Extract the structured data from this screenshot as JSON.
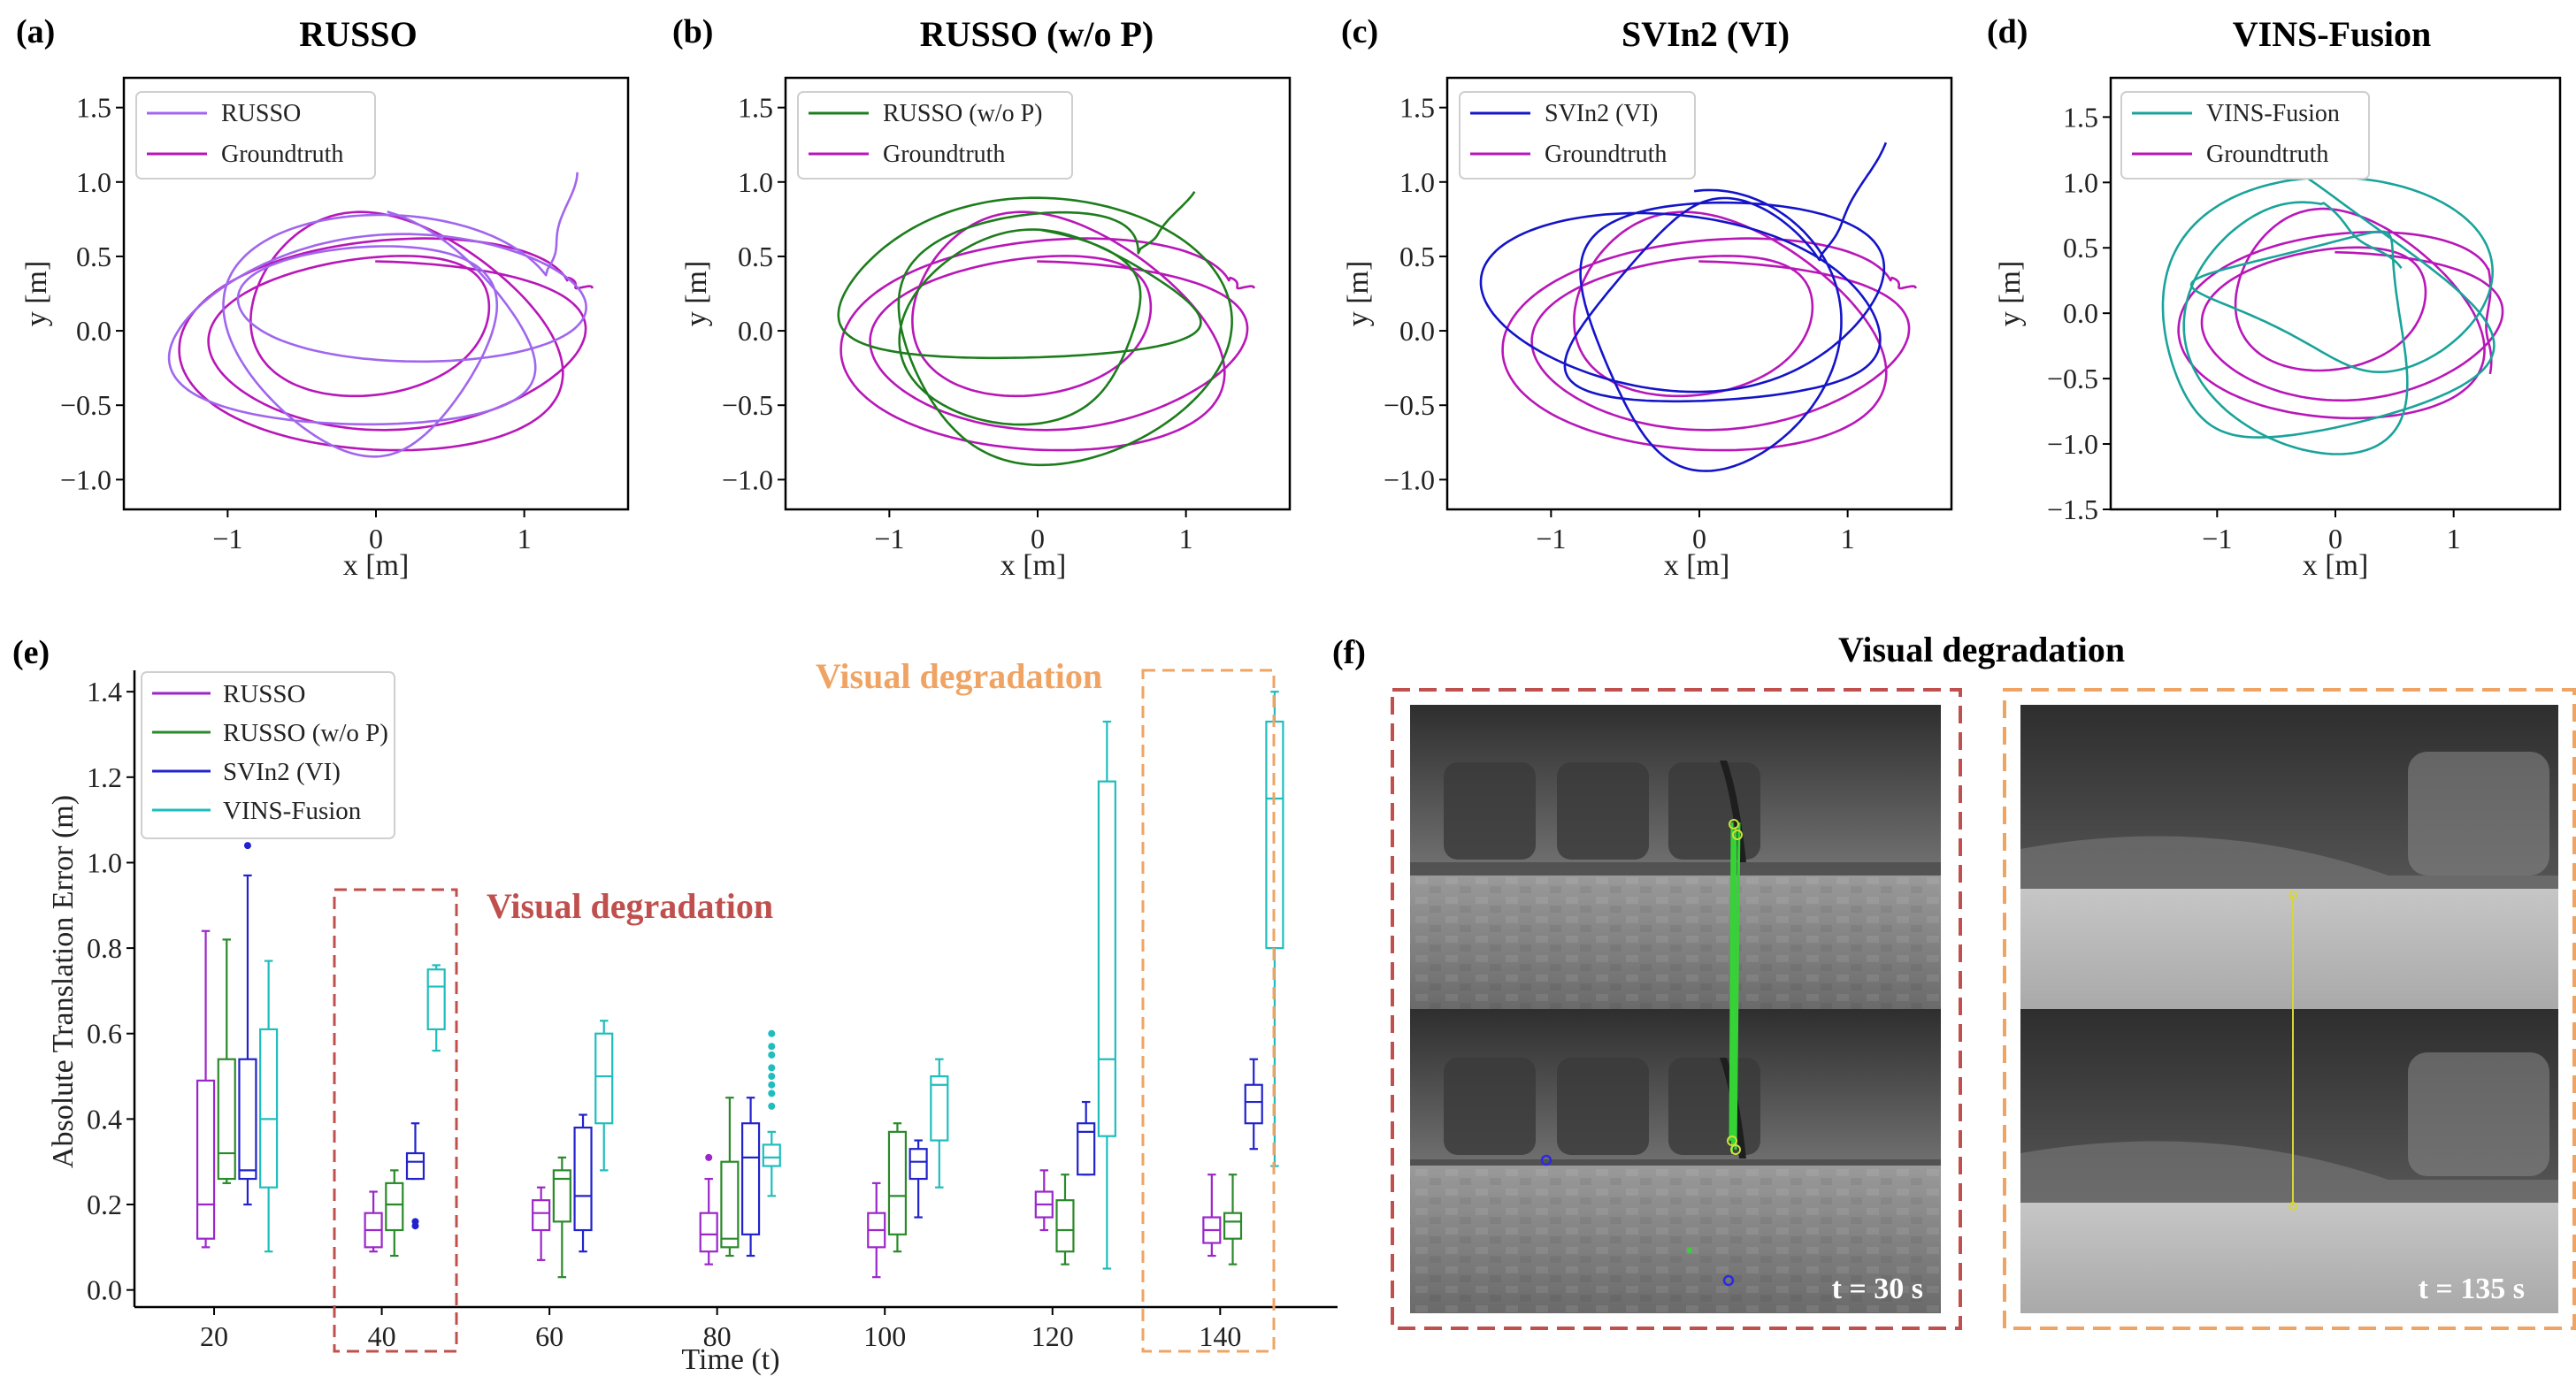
{
  "colors": {
    "russo": "#a066ee",
    "groundtruth": "#b817b8",
    "russo_wop": "#1d7d1d",
    "svin2": "#1414c8",
    "vins": "#1aa39a",
    "box_russo": "#9b26c9",
    "box_wop": "#2a8a2a",
    "box_svin2": "#2222cc",
    "box_vins": "#1fbdbd",
    "vd_red": "#c0504d",
    "vd_orange": "#f0a464"
  },
  "chart_data": [
    {
      "panel": "(a)",
      "type": "line",
      "title": "RUSSO",
      "xlabel": "x [m]",
      "ylabel": "y [m]",
      "xlim": [
        -1.7,
        1.7
      ],
      "ylim": [
        -1.2,
        1.7
      ],
      "xticks": [
        -1,
        0,
        1
      ],
      "xtick_labels": [
        "−1",
        "0",
        "1"
      ],
      "yticks": [
        -1.0,
        -0.5,
        0.0,
        0.5,
        1.0,
        1.5
      ],
      "ytick_labels": [
        "−1.0",
        "−0.5",
        "0.0",
        "0.5",
        "1.0",
        "1.5"
      ],
      "legend": "top-left",
      "series": [
        {
          "name": "RUSSO",
          "color_key": "russo",
          "seed": 11,
          "est": true,
          "params": {
            "a": 1.3,
            "b": 0.74,
            "cx": 0.0,
            "cy": 0.08,
            "loops": 3.2,
            "amp": 0.08,
            "exitx": 1.35,
            "exity": 1.05
          }
        },
        {
          "name": "Groundtruth",
          "color_key": "groundtruth",
          "seed": 3,
          "est": false,
          "params": {
            "a": 1.28,
            "b": 0.72,
            "cx": 0.02,
            "cy": 0.02,
            "loops": 3.2,
            "amp": 0.06,
            "exitx": 1.45,
            "exity": 0.27
          }
        }
      ]
    },
    {
      "panel": "(b)",
      "type": "line",
      "title": "RUSSO (w/o P)",
      "xlabel": "x [m]",
      "ylabel": "y [m]",
      "xlim": [
        -1.7,
        1.7
      ],
      "ylim": [
        -1.2,
        1.7
      ],
      "xticks": [
        -1,
        0,
        1
      ],
      "xtick_labels": [
        "−1",
        "0",
        "1"
      ],
      "yticks": [
        -1.0,
        -0.5,
        0.0,
        0.5,
        1.0,
        1.5
      ],
      "ytick_labels": [
        "−1.0",
        "−0.5",
        "0.0",
        "0.5",
        "1.0",
        "1.5"
      ],
      "legend": "top-left",
      "series": [
        {
          "name": "RUSSO (w/o P)",
          "color_key": "russo_wop",
          "seed": 7,
          "est": true,
          "params": {
            "a": 1.25,
            "b": 0.8,
            "cx": -0.05,
            "cy": 0.12,
            "loops": 3.2,
            "amp": 0.1,
            "exitx": 1.05,
            "exity": 0.92
          }
        },
        {
          "name": "Groundtruth",
          "color_key": "groundtruth",
          "seed": 3,
          "est": false,
          "params": {
            "a": 1.28,
            "b": 0.72,
            "cx": 0.02,
            "cy": 0.02,
            "loops": 3.2,
            "amp": 0.06,
            "exitx": 1.45,
            "exity": 0.27
          }
        }
      ]
    },
    {
      "panel": "(c)",
      "type": "line",
      "title": "SVIn2 (VI)",
      "xlabel": "x [m]",
      "ylabel": "y [m]",
      "xlim": [
        -1.7,
        1.7
      ],
      "ylim": [
        -1.2,
        1.7
      ],
      "xticks": [
        -1,
        0,
        1
      ],
      "xtick_labels": [
        "−1",
        "0",
        "1"
      ],
      "yticks": [
        -1.0,
        -0.5,
        0.0,
        0.5,
        1.0,
        1.5
      ],
      "ytick_labels": [
        "−1.0",
        "−0.5",
        "0.0",
        "0.5",
        "1.0",
        "1.5"
      ],
      "legend": "top-left",
      "series": [
        {
          "name": "SVIn2 (VI)",
          "color_key": "svin2",
          "seed": 19,
          "est": true,
          "params": {
            "a": 1.3,
            "b": 0.85,
            "cx": 0.05,
            "cy": 0.15,
            "loops": 3.2,
            "amp": 0.1,
            "exitx": 1.25,
            "exity": 1.25
          }
        },
        {
          "name": "Groundtruth",
          "color_key": "groundtruth",
          "seed": 3,
          "est": false,
          "params": {
            "a": 1.28,
            "b": 0.72,
            "cx": 0.02,
            "cy": 0.02,
            "loops": 3.2,
            "amp": 0.06,
            "exitx": 1.45,
            "exity": 0.27
          }
        }
      ]
    },
    {
      "panel": "(d)",
      "type": "line",
      "title": "VINS-Fusion",
      "xlabel": "x [m]",
      "ylabel": "y [m]",
      "xlim": [
        -1.9,
        1.9
      ],
      "ylim": [
        -1.5,
        1.8
      ],
      "xticks": [
        -1,
        0,
        1
      ],
      "xtick_labels": [
        "−1",
        "0",
        "1"
      ],
      "yticks": [
        -1.5,
        -1.0,
        -0.5,
        0.0,
        0.5,
        1.0,
        1.5
      ],
      "ytick_labels": [
        "−1.5",
        "−1.0",
        "−0.5",
        "0.0",
        "0.5",
        "1.0",
        "1.5"
      ],
      "legend": "top-left",
      "series": [
        {
          "name": "VINS-Fusion",
          "color_key": "vins",
          "seed": 29,
          "est": true,
          "params": {
            "a": 1.35,
            "b": 1.0,
            "cx": -0.1,
            "cy": 0.05,
            "loops": 3.0,
            "amp": 0.2,
            "exitx": 0.55,
            "exity": 0.33
          }
        },
        {
          "name": "Groundtruth",
          "color_key": "groundtruth",
          "seed": 3,
          "est": false,
          "params": {
            "a": 1.28,
            "b": 0.72,
            "cx": 0.02,
            "cy": 0.02,
            "loops": 3.2,
            "amp": 0.06,
            "exitx": 1.3,
            "exity": -0.48
          }
        }
      ]
    },
    {
      "panel": "(e)",
      "type": "box",
      "xlabel": "Time (t)",
      "ylabel": "Absolute Translation Error (m)",
      "ylim": [
        -0.04,
        1.45
      ],
      "xlim": [
        10.5,
        154
      ],
      "yticks": [
        0.0,
        0.2,
        0.4,
        0.6,
        0.8,
        1.0,
        1.2,
        1.4
      ],
      "ytick_labels": [
        "0.0",
        "0.2",
        "0.4",
        "0.6",
        "0.8",
        "1.0",
        "1.2",
        "1.4"
      ],
      "categories": [
        20,
        40,
        60,
        80,
        100,
        120,
        140
      ],
      "category_labels": [
        "20",
        "40",
        "60",
        "80",
        "100",
        "120",
        "140"
      ],
      "legend": "top-left",
      "series": [
        {
          "name": "RUSSO",
          "color_key": "box_russo",
          "offset": 0,
          "stats": [
            [
              0.1,
              0.12,
              0.2,
              0.49,
              0.84
            ],
            [
              0.09,
              0.1,
              0.14,
              0.18,
              0.23
            ],
            [
              0.07,
              0.14,
              0.18,
              0.21,
              0.24
            ],
            [
              0.06,
              0.09,
              0.13,
              0.18,
              0.26
            ],
            [
              0.03,
              0.1,
              0.14,
              0.18,
              0.25
            ],
            [
              0.14,
              0.17,
              0.2,
              0.23,
              0.28
            ],
            [
              0.08,
              0.11,
              0.14,
              0.17,
              0.27
            ]
          ],
          "outliers": [
            [],
            [],
            [],
            [
              0.31
            ],
            [],
            [],
            []
          ]
        },
        {
          "name": "RUSSO (w/o P)",
          "color_key": "box_wop",
          "offset": 2.5,
          "stats": [
            [
              0.25,
              0.26,
              0.32,
              0.54,
              0.82
            ],
            [
              0.08,
              0.14,
              0.2,
              0.25,
              0.28
            ],
            [
              0.03,
              0.16,
              0.26,
              0.28,
              0.31
            ],
            [
              0.08,
              0.1,
              0.12,
              0.3,
              0.45
            ],
            [
              0.09,
              0.13,
              0.22,
              0.37,
              0.39
            ],
            [
              0.06,
              0.09,
              0.14,
              0.21,
              0.27
            ],
            [
              0.06,
              0.12,
              0.16,
              0.18,
              0.27
            ]
          ],
          "outliers": [
            [],
            [],
            [],
            [],
            [],
            [],
            []
          ]
        },
        {
          "name": "SVIn2 (VI)",
          "color_key": "box_svin2",
          "offset": 5,
          "stats": [
            [
              0.2,
              0.26,
              0.28,
              0.54,
              0.97
            ],
            [
              0.26,
              0.26,
              0.3,
              0.32,
              0.39
            ],
            [
              0.09,
              0.14,
              0.22,
              0.38,
              0.41
            ],
            [
              0.08,
              0.13,
              0.31,
              0.39,
              0.45
            ],
            [
              0.17,
              0.26,
              0.3,
              0.33,
              0.35
            ],
            [
              0.27,
              0.27,
              0.37,
              0.39,
              0.44
            ],
            [
              0.33,
              0.39,
              0.44,
              0.48,
              0.54
            ]
          ],
          "outliers": [
            [
              1.04
            ],
            [
              0.15,
              0.16
            ],
            [],
            [],
            [],
            [],
            []
          ]
        },
        {
          "name": "VINS-Fusion",
          "color_key": "box_vins",
          "offset": 7.5,
          "stats": [
            [
              0.09,
              0.24,
              0.4,
              0.61,
              0.77
            ],
            [
              0.56,
              0.61,
              0.71,
              0.75,
              0.76
            ],
            [
              0.28,
              0.39,
              0.5,
              0.6,
              0.63
            ],
            [
              0.22,
              0.29,
              0.31,
              0.34,
              0.37
            ],
            [
              0.24,
              0.35,
              0.48,
              0.5,
              0.54
            ],
            [
              0.05,
              0.36,
              0.54,
              1.19,
              1.33
            ],
            [
              0.29,
              0.8,
              1.15,
              1.33,
              1.4
            ]
          ],
          "outliers": [
            [],
            [],
            [],
            [
              0.43,
              0.46,
              0.48,
              0.5,
              0.52,
              0.55,
              0.57,
              0.6
            ],
            [],
            [],
            []
          ]
        }
      ],
      "annotations": [
        {
          "text": "Visual degradation",
          "color_key": "vd_red",
          "at": 40
        },
        {
          "text": "Visual degradation",
          "color_key": "vd_orange",
          "at": 140
        }
      ]
    }
  ],
  "panels": {
    "a": {
      "letter": "(a)"
    },
    "b": {
      "letter": "(b)"
    },
    "c": {
      "letter": "(c)"
    },
    "d": {
      "letter": "(d)"
    },
    "e": {
      "letter": "(e)",
      "vd_red": "Visual degradation",
      "vd_orange": "Visual degradation"
    },
    "f": {
      "letter": "(f)",
      "title": "Visual degradation",
      "stamp_left": "t = 30 s",
      "stamp_right": "t = 135 s"
    }
  }
}
